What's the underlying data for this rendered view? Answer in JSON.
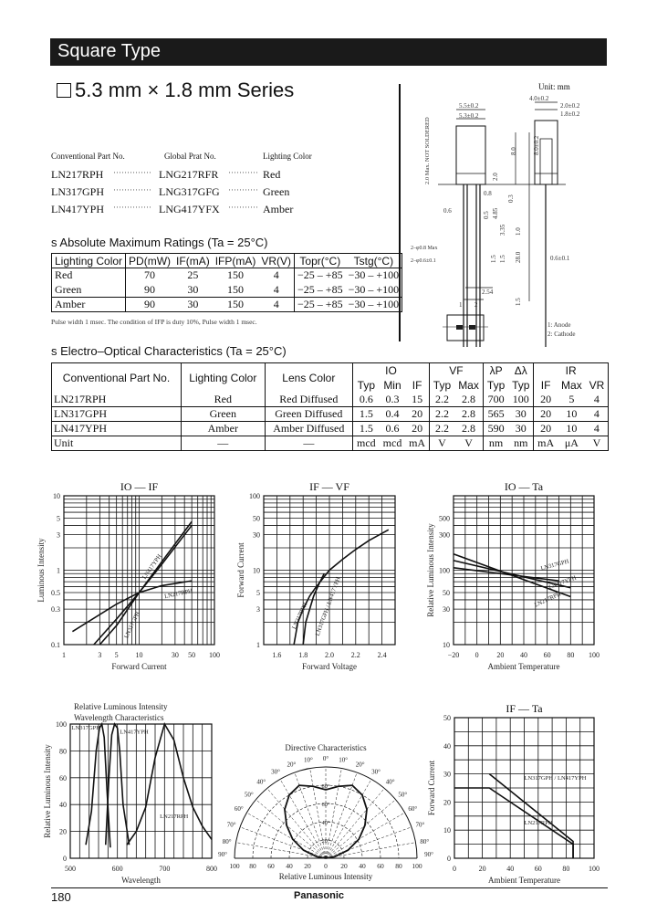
{
  "header": {
    "title": "Square Type"
  },
  "series_title": "5.3 mm × 1.8 mm Series",
  "part_list": {
    "headers": [
      "Conventional Part No.",
      "Global Prat No.",
      "Lighting Color"
    ],
    "rows": [
      {
        "conv": "LN217RPH",
        "global": "LNG217RFR",
        "color": "Red"
      },
      {
        "conv": "LN317GPH",
        "global": "LNG317GFG",
        "color": "Green"
      },
      {
        "conv": "LN417YPH",
        "global": "LNG417YFX",
        "color": "Amber"
      }
    ],
    "leader": "················"
  },
  "abs_max": {
    "title": "s  Absolute Maximum Ratings (Ta = 25°C)",
    "headers": [
      "Lighting Color",
      "PD(mW)",
      "IF(mA)",
      "IFP(mA)",
      "VR(V)",
      "Topr(°C)",
      "Tstg(°C)"
    ],
    "rows": [
      [
        "Red",
        "70",
        "25",
        "150",
        "4",
        "−25 – +85",
        "−30 – +100"
      ],
      [
        "Green",
        "90",
        "30",
        "150",
        "4",
        "−25 – +85",
        "−30 – +100"
      ],
      [
        "Amber",
        "90",
        "30",
        "150",
        "4",
        "−25 – +85",
        "−30 – +100"
      ]
    ],
    "note": "Pulse width 1 msec. The condition of IFP is duty 10%, Pulse width 1 msec."
  },
  "electro_optical": {
    "title": "s  Electro–Optical Characteristics (Ta = 25°C)",
    "group_headers": {
      "conv": "Conventional Part No.",
      "color": "Lighting Color",
      "lens": "Lens Color",
      "io": "IO",
      "vf": "VF",
      "lp": "λP",
      "dl": "Δλ",
      "ir": "IR"
    },
    "sub_headers": [
      "Typ",
      "Min",
      "IF",
      "Typ",
      "Max",
      "Typ",
      "Typ",
      "IF",
      "Max",
      "VR"
    ],
    "rows": [
      [
        "LN217RPH",
        "Red",
        "Red Diffused",
        "0.6",
        "0.3",
        "15",
        "2.2",
        "2.8",
        "700",
        "100",
        "20",
        "5",
        "4"
      ],
      [
        "LN317GPH",
        "Green",
        "Green Diffused",
        "1.5",
        "0.4",
        "20",
        "2.2",
        "2.8",
        "565",
        "30",
        "20",
        "10",
        "4"
      ],
      [
        "LN417YPH",
        "Amber",
        "Amber Diffused",
        "1.5",
        "0.6",
        "20",
        "2.2",
        "2.8",
        "590",
        "30",
        "20",
        "10",
        "4"
      ],
      [
        "Unit",
        "—",
        "—",
        "mcd",
        "mcd",
        "mA",
        "V",
        "V",
        "nm",
        "nm",
        "mA",
        "μA",
        "V"
      ]
    ]
  },
  "drawing": {
    "unit": "Unit: mm",
    "dims": [
      "5.5±0.2",
      "5.3±0.2",
      "4.0±0.2",
      "2.0±0.2",
      "1.8±0.2",
      "8.0",
      "8.0±0.2",
      "2.0",
      "0.8",
      "0.6",
      "0.5",
      "4.85",
      "0.3",
      "3.35",
      "1.0",
      "1.5",
      "1.5",
      "28.0",
      "1.5",
      "2–φ0.8 Max",
      "2–φ0.6±0.1",
      "0.6±0.1",
      "2.54",
      "2.0 Max. NOT SOLDERED",
      "1",
      "2"
    ],
    "legend": [
      "1: Anode",
      "2: Cathode"
    ]
  },
  "chart_data": [
    {
      "id": "io-if",
      "type": "line",
      "title": "IO — IF",
      "xlabel": "Forward Current",
      "ylabel": "Luminous Intensity",
      "xscale": "log",
      "yscale": "log",
      "xlim": [
        1,
        100
      ],
      "ylim": [
        0.1,
        10
      ],
      "grid": true,
      "xticks": [
        "1",
        "3",
        "5",
        "10",
        "30",
        "50",
        "100"
      ],
      "yticks": [
        "0.1",
        "0.3",
        "0.5",
        "1",
        "3",
        "5",
        "10"
      ],
      "series": [
        {
          "name": "LN217RPH",
          "x": [
            1.3,
            5,
            10,
            20,
            50
          ],
          "y": [
            0.15,
            0.35,
            0.5,
            0.62,
            0.72
          ]
        },
        {
          "name": "LN317GPH",
          "x": [
            3,
            5,
            10,
            20,
            50
          ],
          "y": [
            0.1,
            0.18,
            0.5,
            1.2,
            4
          ]
        },
        {
          "name": "LN417YPH",
          "x": [
            2.5,
            5,
            10,
            20,
            50
          ],
          "y": [
            0.1,
            0.22,
            0.5,
            1.3,
            4.5
          ]
        }
      ]
    },
    {
      "id": "if-vf",
      "type": "line",
      "title": "IF — VF",
      "xlabel": "Forward Voltage",
      "ylabel": "Forward Current",
      "xscale": "linear",
      "yscale": "log",
      "xlim": [
        1.5,
        2.5
      ],
      "ylim": [
        1,
        100
      ],
      "grid": true,
      "xticks": [
        "1.6",
        "1.8",
        "2.0",
        "2.2",
        "2.4"
      ],
      "yticks": [
        "1",
        "3",
        "5",
        "10",
        "30",
        "50",
        "100"
      ],
      "series": [
        {
          "name": "LN217RPH",
          "x": [
            1.73,
            1.76,
            1.8,
            1.85,
            1.9,
            2.0,
            2.1,
            2.2,
            2.3,
            2.45
          ],
          "y": [
            1,
            2,
            3,
            4.5,
            6,
            10,
            14,
            19,
            25,
            35
          ]
        },
        {
          "name": "LN317GPH / LN417YPH",
          "x": [
            1.8,
            1.82,
            1.85,
            1.88,
            1.92,
            1.96
          ],
          "y": [
            1,
            2,
            3,
            4.5,
            6.5,
            9
          ]
        }
      ]
    },
    {
      "id": "io-ta",
      "type": "line",
      "title": "IO — Ta",
      "xlabel": "Ambient Temperature",
      "ylabel": "Relative Luminous Intensity",
      "xscale": "linear",
      "yscale": "log",
      "xlim": [
        -20,
        100
      ],
      "ylim": [
        10,
        1000
      ],
      "grid": true,
      "xticks": [
        "−20",
        "0",
        "20",
        "40",
        "60",
        "80",
        "100"
      ],
      "yticks": [
        "10",
        "30",
        "50",
        "100",
        "300",
        "500"
      ],
      "series": [
        {
          "name": "LN217RPH",
          "x": [
            -20,
            80
          ],
          "y": [
            165,
            44
          ]
        },
        {
          "name": "LN417YPH",
          "x": [
            -20,
            80
          ],
          "y": [
            135,
            58
          ]
        },
        {
          "name": "LN317GPH",
          "x": [
            -20,
            70
          ],
          "y": [
            108,
            72
          ]
        }
      ]
    },
    {
      "id": "spectrum",
      "type": "line",
      "title": "Relative Luminous Intensity Wavelength Characteristics",
      "xlabel": "Wavelength",
      "ylabel": "Relative Luminous Intensity",
      "xscale": "linear",
      "yscale": "linear",
      "xlim": [
        500,
        800
      ],
      "ylim": [
        0,
        100
      ],
      "grid": true,
      "xticks": [
        "500",
        "600",
        "700",
        "800"
      ],
      "yticks": [
        "0",
        "20",
        "40",
        "60",
        "80",
        "100"
      ],
      "series": [
        {
          "name": "LN317GPH",
          "x": [
            533,
            545,
            555,
            562,
            567,
            572,
            578,
            585
          ],
          "y": [
            10,
            35,
            80,
            97,
            100,
            90,
            50,
            8
          ]
        },
        {
          "name": "LN417YPH",
          "x": [
            575,
            582,
            588,
            594,
            600,
            605,
            612,
            625
          ],
          "y": [
            10,
            60,
            92,
            100,
            97,
            80,
            40,
            10
          ]
        },
        {
          "name": "LN217RPH",
          "x": [
            620,
            640,
            660,
            680,
            700,
            720,
            740,
            760,
            780,
            800
          ],
          "y": [
            10,
            20,
            38,
            75,
            100,
            88,
            60,
            38,
            24,
            14
          ]
        }
      ]
    },
    {
      "id": "directive",
      "type": "polar",
      "title": "Directive Characteristics",
      "xlabel": "Relative Luminous Intensity",
      "angle_labels": [
        "0°",
        "10°",
        "20°",
        "30°",
        "40°",
        "50°",
        "60°",
        "70°",
        "80°",
        "90°"
      ],
      "radial_labels": [
        "20°",
        "40°",
        "60°",
        "80°"
      ],
      "xticks": [
        "100",
        "80",
        "60",
        "40",
        "20",
        "0",
        "20",
        "40",
        "60",
        "80",
        "100"
      ],
      "angles": [
        0,
        10,
        20,
        30,
        40,
        50,
        60,
        70,
        80,
        90
      ],
      "values": [
        75,
        80,
        85,
        80,
        70,
        56,
        42,
        26,
        10,
        0
      ]
    },
    {
      "id": "if-ta",
      "type": "line",
      "title": "IF — Ta",
      "xlabel": "Ambient Temperature",
      "ylabel": "Forward Current",
      "xscale": "linear",
      "yscale": "linear",
      "xlim": [
        0,
        100
      ],
      "ylim": [
        0,
        50
      ],
      "grid": true,
      "xticks": [
        "0",
        "20",
        "40",
        "60",
        "80",
        "100"
      ],
      "yticks": [
        "0",
        "10",
        "20",
        "30",
        "40",
        "50"
      ],
      "series": [
        {
          "name": "LN317GPH / LN417YPH",
          "x": [
            25,
            85,
            85
          ],
          "y": [
            30,
            6,
            0
          ]
        },
        {
          "name": "LN217RPH",
          "x": [
            0,
            25,
            85,
            85
          ],
          "y": [
            25,
            25,
            5,
            0
          ]
        }
      ]
    }
  ],
  "footer": {
    "page": "180",
    "brand": "Panasonic"
  }
}
